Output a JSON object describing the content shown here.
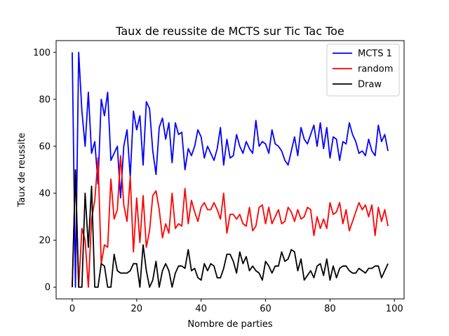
{
  "chart_data": {
    "type": "line",
    "title": "Taux de reussite de MCTS sur Tic Tac Toe",
    "xlabel": "Nombre de parties",
    "ylabel": "Taux de reussite",
    "xlim": [
      -5,
      103
    ],
    "ylim": [
      -5,
      105
    ],
    "x_ticks": [
      0,
      20,
      40,
      60,
      80,
      100
    ],
    "y_ticks": [
      0,
      20,
      40,
      60,
      80,
      100
    ],
    "grid": false,
    "legend_position": "top-right",
    "x": [
      0,
      1,
      2,
      3,
      4,
      5,
      6,
      7,
      8,
      9,
      10,
      11,
      12,
      13,
      14,
      15,
      16,
      17,
      18,
      19,
      20,
      21,
      22,
      23,
      24,
      25,
      26,
      27,
      28,
      29,
      30,
      31,
      32,
      33,
      34,
      35,
      36,
      37,
      38,
      39,
      40,
      41,
      42,
      43,
      44,
      45,
      46,
      47,
      48,
      49,
      50,
      51,
      52,
      53,
      54,
      55,
      56,
      57,
      58,
      59,
      60,
      61,
      62,
      63,
      64,
      65,
      66,
      67,
      68,
      69,
      70,
      71,
      72,
      73,
      74,
      75,
      76,
      77,
      78,
      79,
      80,
      81,
      82,
      83,
      84,
      85,
      86,
      87,
      88,
      89,
      90,
      91,
      92,
      93,
      94,
      95,
      96,
      97,
      98
    ],
    "series": [
      {
        "name": "MCTS 1",
        "color": "#0000ff",
        "values": [
          100,
          0,
          100,
          75,
          60,
          83,
          57,
          62,
          44,
          80,
          73,
          83,
          54,
          57,
          60,
          38,
          60,
          67,
          47,
          75,
          67,
          73,
          52,
          79,
          76,
          58,
          48,
          68,
          72,
          63,
          70,
          53,
          70,
          65,
          66,
          50,
          59,
          56,
          60,
          67,
          64,
          55,
          60,
          57,
          54,
          59,
          68,
          52,
          63,
          55,
          56,
          65,
          60,
          57,
          62,
          59,
          57,
          71,
          60,
          62,
          61,
          57,
          67,
          61,
          60,
          58,
          54,
          52,
          58,
          64,
          56,
          68,
          63,
          61,
          65,
          69,
          60,
          70,
          59,
          68,
          55,
          64,
          63,
          54,
          62,
          61,
          70,
          65,
          62,
          57,
          58,
          56,
          63,
          58,
          56,
          69,
          62,
          65,
          58
        ]
      },
      {
        "name": "random",
        "color": "#ff0000",
        "values": [
          0,
          50,
          0,
          25,
          20,
          0,
          29,
          37,
          55,
          10,
          18,
          17,
          46,
          29,
          33,
          56,
          35,
          28,
          47,
          15,
          38,
          19,
          39,
          17,
          24,
          39,
          41,
          33,
          21,
          27,
          23,
          40,
          25,
          27,
          26,
          42,
          27,
          37,
          32,
          28,
          34,
          36,
          33,
          33,
          36,
          33,
          29,
          40,
          23,
          31,
          31,
          29,
          31,
          27,
          26,
          34,
          24,
          26,
          34,
          35,
          27,
          34,
          27,
          30,
          33,
          27,
          28,
          34,
          32,
          28,
          33,
          29,
          30,
          34,
          33,
          22,
          30,
          25,
          29,
          25,
          36,
          31,
          32,
          36,
          27,
          33,
          24,
          28,
          32,
          36,
          33,
          35,
          30,
          35,
          22,
          34,
          28,
          33,
          26
        ]
      },
      {
        "name": "Draw",
        "color": "#000000",
        "values": [
          0,
          50,
          0,
          0,
          40,
          17,
          43,
          0,
          0,
          10,
          9,
          0,
          0,
          14,
          7,
          6,
          6,
          6,
          7,
          10,
          10,
          0,
          18,
          7,
          0,
          3,
          11,
          0,
          7,
          10,
          7,
          0,
          6,
          9,
          9,
          8,
          16,
          7,
          8,
          4,
          3,
          10,
          7,
          10,
          9,
          4,
          4,
          8,
          14,
          14,
          11,
          6,
          15,
          10,
          13,
          7,
          9,
          7,
          6,
          3,
          11,
          9,
          6,
          9,
          9,
          15,
          11,
          12,
          16,
          15,
          7,
          12,
          3,
          5,
          7,
          4,
          9,
          10,
          5,
          12,
          3,
          9,
          4,
          8,
          9,
          9,
          7,
          6,
          6,
          8,
          7,
          6,
          8,
          8,
          9,
          9,
          4,
          7,
          10
        ]
      }
    ]
  }
}
